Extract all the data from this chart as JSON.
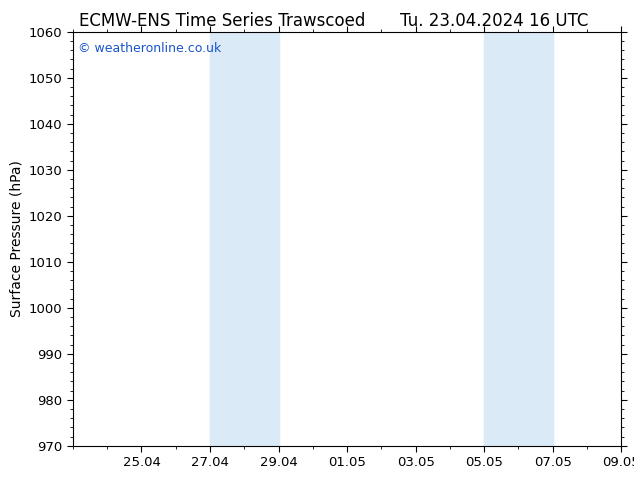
{
  "title_left": "ECMW-ENS Time Series Trawscoed",
  "title_right": "Tu. 23.04.2024 16 UTC",
  "ylabel": "Surface Pressure (hPa)",
  "ylim": [
    970,
    1060
  ],
  "yticks": [
    970,
    980,
    990,
    1000,
    1010,
    1020,
    1030,
    1040,
    1050,
    1060
  ],
  "xlim": [
    0,
    16
  ],
  "xtick_positions": [
    2,
    4,
    6,
    8,
    10,
    12,
    14,
    16
  ],
  "xtick_labels": [
    "25.04",
    "27.04",
    "29.04",
    "01.05",
    "03.05",
    "05.05",
    "07.05",
    "09.05"
  ],
  "shaded_regions": [
    {
      "start": 4,
      "end": 6
    },
    {
      "start": 12,
      "end": 14
    }
  ],
  "shade_color": "#dbeaf7",
  "background_color": "#ffffff",
  "watermark_text": "© weatheronline.co.uk",
  "watermark_color": "#1a55cc",
  "title_fontsize": 12,
  "axis_label_fontsize": 10,
  "tick_fontsize": 9.5,
  "watermark_fontsize": 9
}
